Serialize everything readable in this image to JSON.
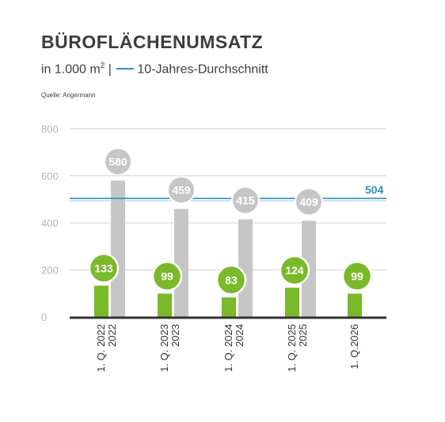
{
  "header": {
    "title": "BÜROFLÄCHENUMSATZ",
    "subtitle_prefix": "in  1.000 m",
    "subtitle_sup": "2",
    "subtitle_sep": " |",
    "subtitle_avg_label": "10-Jahres-Durchschnitt",
    "source": "Quelle: Angermann"
  },
  "colors": {
    "q1_bar": "#7ab929",
    "year_bar": "#c6c6c6",
    "avg_line": "#2e8fbf",
    "grid": "#cfcfcf",
    "axis": "#333333"
  },
  "chart_data": {
    "type": "bar",
    "categories": [
      [
        "1. Q. 2022",
        "2022"
      ],
      [
        "1. Q. 2023",
        "2023"
      ],
      [
        "1. Q. 2024",
        "2024"
      ],
      [
        "1. Q. 2025",
        "2025"
      ],
      [
        "1. Q.2026",
        ""
      ]
    ],
    "series": [
      {
        "values": [
          133,
          99,
          83,
          124,
          99
        ]
      },
      {
        "values": [
          580,
          459,
          415,
          409,
          null
        ]
      }
    ],
    "value_labels": {
      "q1": [
        "133",
        "99",
        "83",
        "124",
        "99"
      ],
      "year": [
        "580",
        "459",
        "415",
        "409",
        ""
      ]
    },
    "average": {
      "value": 504,
      "label": "504"
    },
    "yticks": [
      0,
      200,
      400,
      600,
      800
    ],
    "ytick_labels": [
      "0",
      "200",
      "400",
      "600",
      "800"
    ],
    "ylim": [
      0,
      800
    ],
    "grid": true,
    "title": "BÜROFLÄCHENUMSATZ",
    "xlabel": "",
    "ylabel": ""
  }
}
